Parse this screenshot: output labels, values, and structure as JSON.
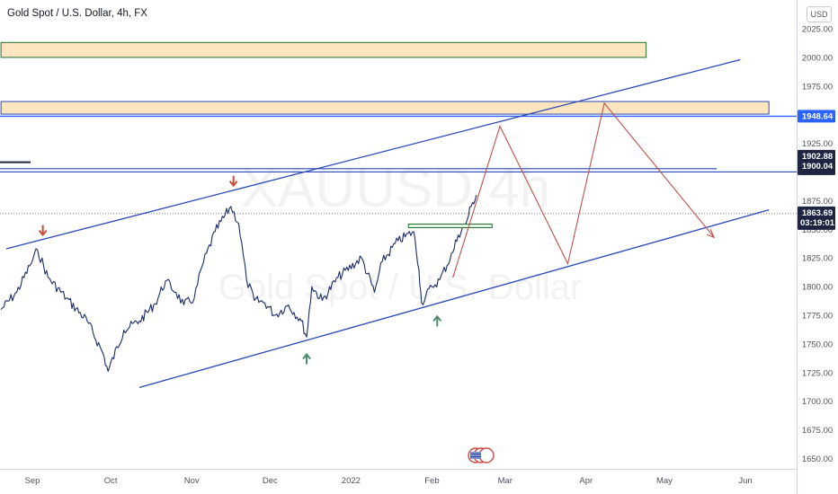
{
  "legend": {
    "text": "Gold Spot / U.S. Dollar, 4h, FX"
  },
  "currency_label": "USD",
  "watermark": {
    "symbol": "XAUUSD, 4h",
    "description": "Gold Spot / U.S. Dollar"
  },
  "colors": {
    "price": "#1b2a68",
    "channel": "#2a47b8",
    "projection": "#c0504d",
    "zone_fill": "#fde5bf",
    "zone_border": "#1f6f2a",
    "arrow_down": "#d04a36",
    "arrow_up": "#4f8a6e",
    "tag_blue": "#2962ff",
    "tag_dark": "#1d2542"
  },
  "chart_data": {
    "type": "line",
    "title": "Gold Spot / U.S. Dollar, 4h, FX",
    "symbol": "XAUUSD",
    "interval": "4h",
    "currency": "USD",
    "y_scale": "linear",
    "ylim": [
      1645,
      2035
    ],
    "y_ticks": [
      1650,
      1675,
      1700,
      1725,
      1750,
      1775,
      1800,
      1825,
      1850,
      1875,
      1900,
      1925,
      1950,
      1975,
      2000,
      2025
    ],
    "y_tick_labels": [
      "1650.00",
      "1675.00",
      "1700.00",
      "1725.00",
      "1750.00",
      "1775.00",
      "1800.00",
      "1825.00",
      "1850.00",
      "1875.00",
      "1900.00",
      "1925.00",
      "1950.00",
      "1975.00",
      "2000.00",
      "2025.00"
    ],
    "x_ticks": [
      "2021-09-01",
      "2021-10-01",
      "2021-11-01",
      "2021-12-01",
      "2022-01-01",
      "2022-02-01",
      "2022-03-01",
      "2022-04-01",
      "2022-05-01",
      "2022-06-01"
    ],
    "x_tick_labels": [
      "Sep",
      "Oct",
      "Nov",
      "Dec",
      "2022",
      "Feb",
      "Mar",
      "Apr",
      "May",
      "Jun"
    ],
    "series": [
      {
        "x": [
          "2021-08-20",
          "2021-08-26",
          "2021-08-31",
          "2021-09-03",
          "2021-09-07",
          "2021-09-14",
          "2021-09-22",
          "2021-09-28",
          "2021-09-30",
          "2021-10-06",
          "2021-10-12",
          "2021-10-18",
          "2021-10-22",
          "2021-10-26",
          "2021-10-29",
          "2021-11-02",
          "2021-11-05",
          "2021-11-10",
          "2021-11-16",
          "2021-11-19",
          "2021-11-22",
          "2021-11-25",
          "2021-11-29",
          "2021-12-03",
          "2021-12-08",
          "2021-12-13",
          "2021-12-15",
          "2021-12-17",
          "2021-12-21",
          "2021-12-27",
          "2022-01-05",
          "2022-01-10",
          "2022-01-13",
          "2022-01-19",
          "2022-01-25",
          "2022-01-27",
          "2022-01-28",
          "2022-02-01",
          "2022-02-04",
          "2022-02-09",
          "2022-02-11",
          "2022-02-14",
          "2022-02-16",
          "2022-02-18"
        ],
        "y": [
          1780,
          1795,
          1818,
          1832,
          1808,
          1790,
          1770,
          1742,
          1726,
          1762,
          1770,
          1785,
          1805,
          1795,
          1784,
          1790,
          1818,
          1848,
          1870,
          1855,
          1806,
          1788,
          1786,
          1775,
          1784,
          1770,
          1756,
          1800,
          1788,
          1808,
          1825,
          1795,
          1822,
          1840,
          1848,
          1815,
          1786,
          1800,
          1806,
          1830,
          1845,
          1855,
          1870,
          1880
        ]
      }
    ],
    "price_levels": [
      {
        "label": "1948.64",
        "value": 1948.64
      },
      {
        "label": "1902.88",
        "value": 1902.88
      },
      {
        "label": "1900.04",
        "value": 1900.04
      },
      {
        "label": "1863.69",
        "value": 1863.69,
        "countdown": "03:19:01"
      }
    ],
    "zones": [
      {
        "x0": "2021-08-20",
        "x1": "2022-04-24",
        "y0": 2000,
        "y1": 2013
      },
      {
        "x0": "2021-08-20",
        "x1": "2022-06-10",
        "y0": 1950.5,
        "y1": 1961.5
      }
    ],
    "demand_line": {
      "x0": "2022-01-23",
      "x1": "2022-02-24",
      "y": 1853
    },
    "channel_lines": [
      {
        "x": [
          "2021-08-22",
          "2022-05-30"
        ],
        "y": [
          1833,
          1998
        ]
      },
      {
        "x": [
          "2021-10-12",
          "2022-06-10"
        ],
        "y": [
          1712,
          1867
        ]
      }
    ],
    "projection": {
      "x": [
        "2022-02-09",
        "2022-02-27",
        "2022-03-25",
        "2022-04-08",
        "2022-05-20"
      ],
      "y": [
        1808,
        1940,
        1820,
        1960,
        1843
      ]
    },
    "markers": [
      {
        "kind": "down",
        "x": "2021-09-05",
        "y": 1849
      },
      {
        "kind": "down",
        "x": "2021-11-17",
        "y": 1892
      },
      {
        "kind": "up",
        "x": "2021-12-15",
        "y": 1737
      },
      {
        "kind": "up",
        "x": "2022-02-03",
        "y": 1770
      }
    ]
  }
}
